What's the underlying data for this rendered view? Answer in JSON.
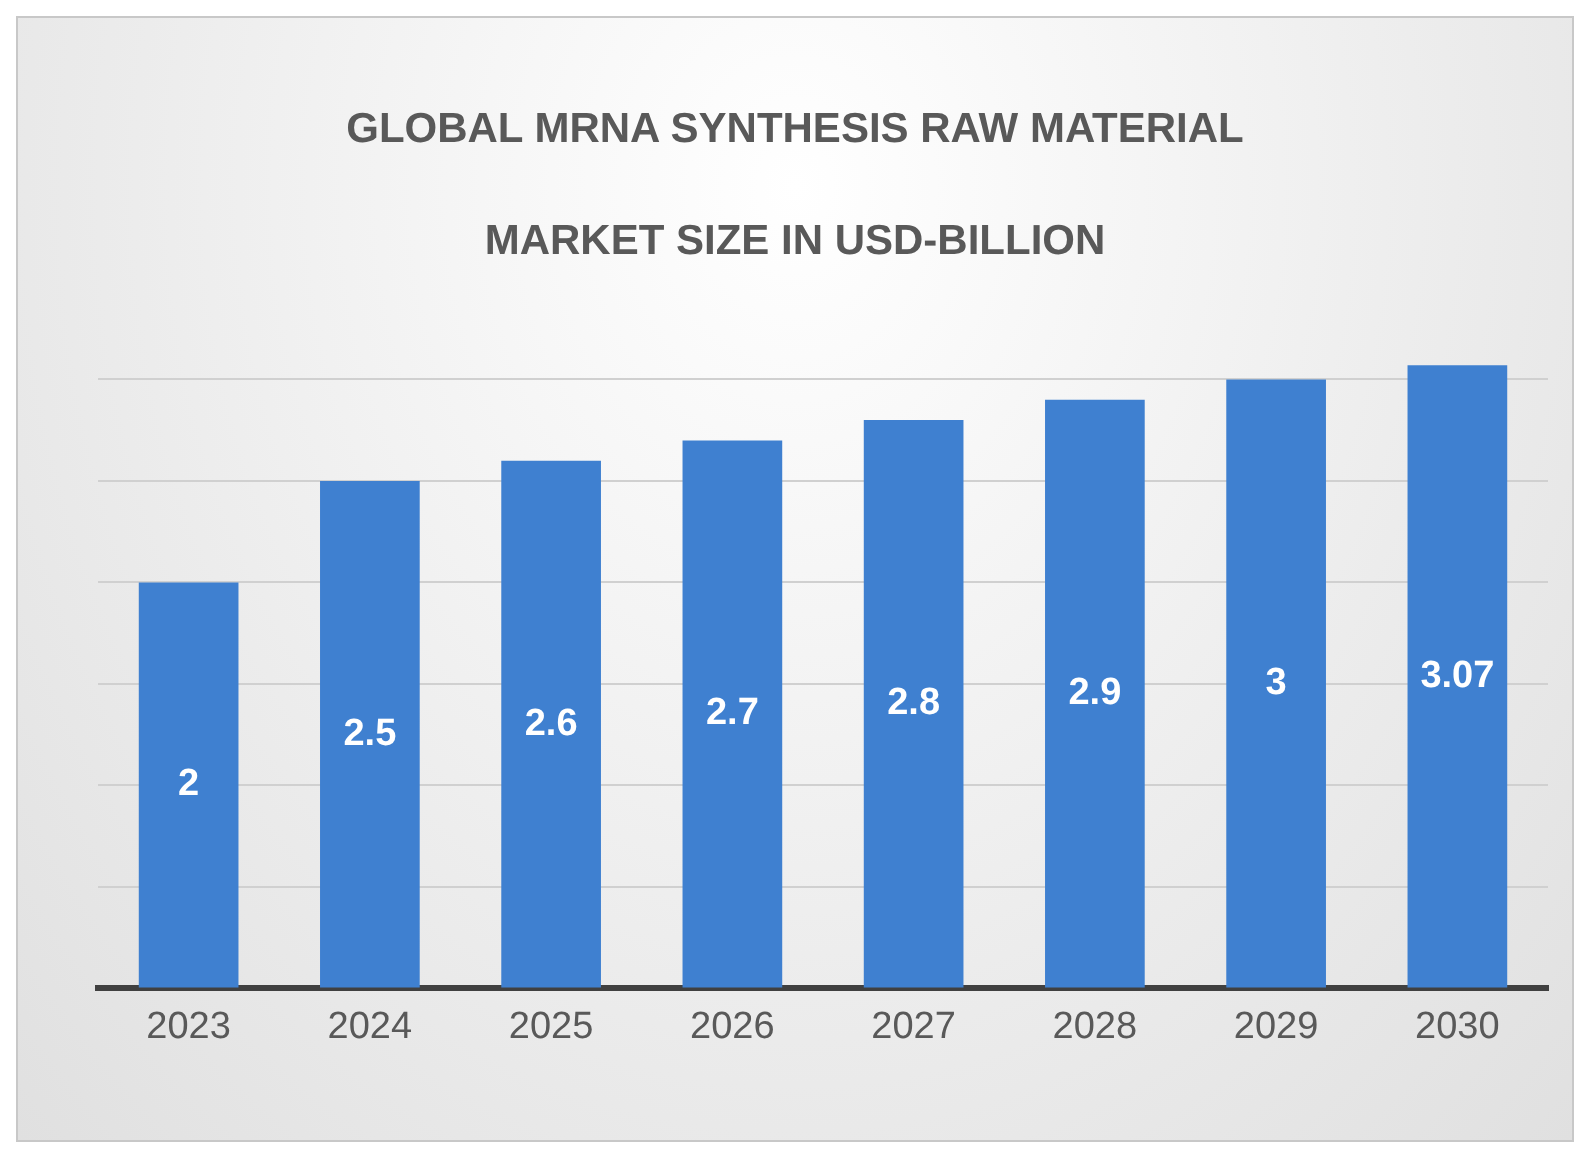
{
  "chart_data": {
    "type": "bar",
    "title": "GLOBAL MRNA SYNTHESIS RAW MATERIAL MARKET SIZE IN USD-BILLION",
    "categories": [
      "2023",
      "2024",
      "2025",
      "2026",
      "2027",
      "2028",
      "2029",
      "2030"
    ],
    "values": [
      2,
      2.5,
      2.6,
      2.7,
      2.8,
      2.9,
      3,
      3.07
    ],
    "color": "#3f80d0",
    "yticks": [
      {
        "value": 0,
        "label": null
      },
      {
        "value": 0.5,
        "label": null
      },
      {
        "value": 1,
        "label": null
      },
      {
        "value": 1.5,
        "label": null
      },
      {
        "value": 2,
        "label": null
      },
      {
        "value": 2.5,
        "label": null
      },
      {
        "value": 3,
        "label": null
      }
    ],
    "grid": "y",
    "tick_labels": "x",
    "legend": false,
    "data_labels": true
  }
}
